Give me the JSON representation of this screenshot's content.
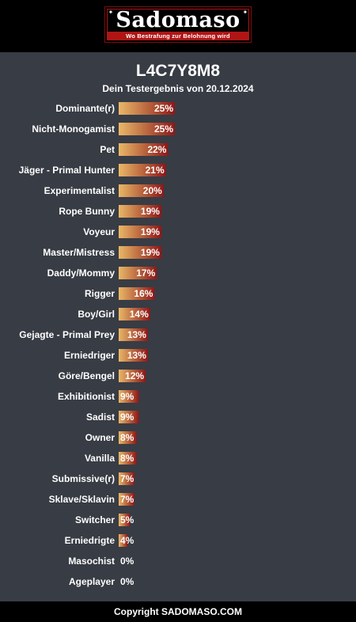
{
  "header": {
    "logo_text": "Sadomaso",
    "logo_tagline": "Wo Bestrafung zur Belohnung wird",
    "logo_color": "#b01515"
  },
  "title": "L4C7Y8M8",
  "subtitle": "Dein Testergebnis von 20.12.2024",
  "footer": "Copyright SADOMASO.COM",
  "chart_data": {
    "type": "bar",
    "orientation": "horizontal",
    "title": "L4C7Y8M8",
    "subtitle": "Dein Testergebnis von 20.12.2024",
    "xlabel": "",
    "ylabel": "",
    "unit": "%",
    "xlim": [
      0,
      25
    ],
    "grid": false,
    "legend": "none",
    "bar_gradient": [
      "#e9b868",
      "#8e1717"
    ],
    "categories": [
      "Dominante(r)",
      "Nicht-Monogamist",
      "Pet",
      "Jäger - Primal Hunter",
      "Experimentalist",
      "Rope Bunny",
      "Voyeur",
      "Master/Mistress",
      "Daddy/Mommy",
      "Rigger",
      "Boy/Girl",
      "Gejagte - Primal Prey",
      "Erniedriger",
      "Göre/Bengel",
      "Exhibitionist",
      "Sadist",
      "Owner",
      "Vanilla",
      "Submissive(r)",
      "Sklave/Sklavin",
      "Switcher",
      "Erniedrigte",
      "Masochist",
      "Ageplayer"
    ],
    "values": [
      25,
      25,
      22,
      21,
      20,
      19,
      19,
      19,
      17,
      16,
      14,
      13,
      13,
      12,
      9,
      9,
      8,
      8,
      7,
      7,
      5,
      4,
      0,
      0
    ],
    "value_labels": [
      "25%",
      "25%",
      "22%",
      "21%",
      "20%",
      "19%",
      "19%",
      "19%",
      "17%",
      "16%",
      "14%",
      "13%",
      "13%",
      "12%",
      "9%",
      "9%",
      "8%",
      "8%",
      "7%",
      "7%",
      "5%",
      "4%",
      "0%",
      "0%"
    ]
  }
}
